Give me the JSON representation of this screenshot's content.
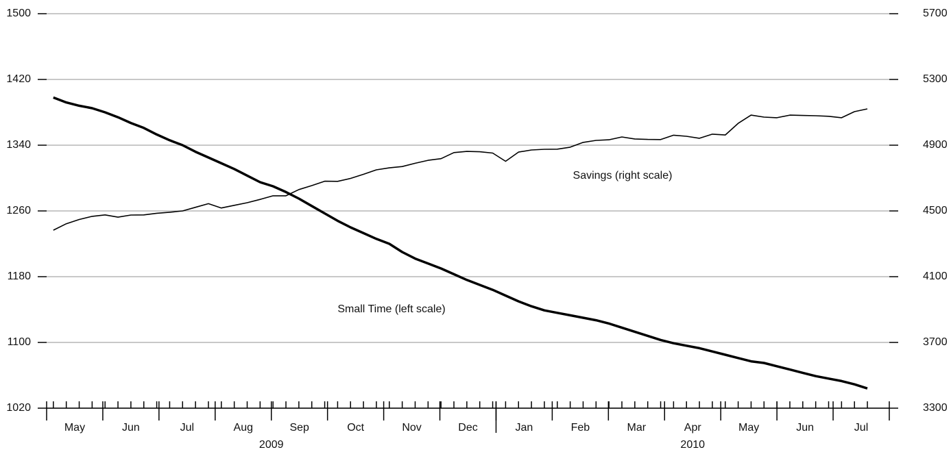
{
  "chart_data": {
    "type": "line",
    "x": [
      0.12,
      0.35,
      0.58,
      0.81,
      1.04,
      1.27,
      1.5,
      1.73,
      1.96,
      2.19,
      2.42,
      2.65,
      2.88,
      3.11,
      3.34,
      3.57,
      3.8,
      4.03,
      4.26,
      4.49,
      4.72,
      4.95,
      5.18,
      5.41,
      5.64,
      5.87,
      6.1,
      6.33,
      6.56,
      6.79,
      7.02,
      7.25,
      7.48,
      7.71,
      7.94,
      8.17,
      8.4,
      8.63,
      8.86,
      9.09,
      9.32,
      9.55,
      9.78,
      10.01,
      10.24,
      10.47,
      10.7,
      10.93,
      11.16,
      11.39,
      11.62,
      11.85,
      12.08,
      12.31,
      12.54,
      12.77,
      13.0,
      13.23,
      13.46,
      13.69,
      13.92,
      14.15,
      14.38,
      14.61
    ],
    "xlim": [
      0,
      15
    ],
    "x_boundaries": [
      0,
      1,
      2,
      3,
      4,
      5,
      6,
      7,
      8,
      9,
      10,
      11,
      12,
      13,
      14,
      15
    ],
    "xticks": [
      {
        "value": 0.5,
        "label": "May"
      },
      {
        "value": 1.5,
        "label": "Jun"
      },
      {
        "value": 2.5,
        "label": "Jul"
      },
      {
        "value": 3.5,
        "label": "Aug"
      },
      {
        "value": 4.5,
        "label": "Sep"
      },
      {
        "value": 5.5,
        "label": "Oct"
      },
      {
        "value": 6.5,
        "label": "Nov"
      },
      {
        "value": 7.5,
        "label": "Dec"
      },
      {
        "value": 8.5,
        "label": "Jan"
      },
      {
        "value": 9.5,
        "label": "Feb"
      },
      {
        "value": 10.5,
        "label": "Mar"
      },
      {
        "value": 11.5,
        "label": "Apr"
      },
      {
        "value": 12.5,
        "label": "May"
      },
      {
        "value": 13.5,
        "label": "Jun"
      },
      {
        "value": 14.5,
        "label": "Jul"
      }
    ],
    "year_groups": [
      {
        "label": "2009",
        "from": 0,
        "to": 8
      },
      {
        "label": "2010",
        "from": 8,
        "to": 15
      }
    ],
    "ylim": [
      1020,
      1500
    ],
    "yticks": [
      1020,
      1100,
      1180,
      1260,
      1340,
      1420,
      1500
    ],
    "y2lim": [
      3300,
      5700
    ],
    "y2ticks": [
      3300,
      3700,
      4100,
      4500,
      4900,
      5300,
      5700
    ],
    "grid": true,
    "series": [
      {
        "name": "Small Time (left scale)",
        "color": "#000000",
        "axis": "y",
        "values": [
          1398,
          1392,
          1388,
          1385,
          1380,
          1374,
          1367,
          1361,
          1353,
          1346,
          1340,
          1332,
          1325,
          1318,
          1311,
          1303,
          1295,
          1290,
          1283,
          1275,
          1266,
          1257,
          1248,
          1240,
          1233,
          1226,
          1220,
          1210,
          1202,
          1196,
          1190,
          1183,
          1176,
          1170,
          1164,
          1157,
          1150,
          1144,
          1139,
          1136,
          1133,
          1130,
          1127,
          1123,
          1118,
          1113,
          1108,
          1103,
          1099,
          1096,
          1093,
          1089,
          1085,
          1081,
          1077,
          1075,
          1071,
          1067,
          1063,
          1059,
          1056,
          1053,
          1049,
          1044
        ]
      },
      {
        "name": "Savings (right scale)",
        "color": "#000000",
        "axis": "y2",
        "values": [
          4383,
          4422,
          4448,
          4467,
          4476,
          4462,
          4475,
          4476,
          4486,
          4492,
          4500,
          4522,
          4544,
          4518,
          4534,
          4550,
          4570,
          4592,
          4592,
          4630,
          4654,
          4681,
          4680,
          4698,
          4723,
          4750,
          4762,
          4770,
          4790,
          4808,
          4818,
          4855,
          4862,
          4860,
          4852,
          4802,
          4858,
          4871,
          4875,
          4876,
          4888,
          4917,
          4929,
          4933,
          4950,
          4938,
          4935,
          4934,
          4961,
          4954,
          4942,
          4967,
          4962,
          5033,
          5083,
          5071,
          5067,
          5083,
          5081,
          5079,
          5076,
          5067,
          5104,
          5121
        ]
      }
    ]
  }
}
